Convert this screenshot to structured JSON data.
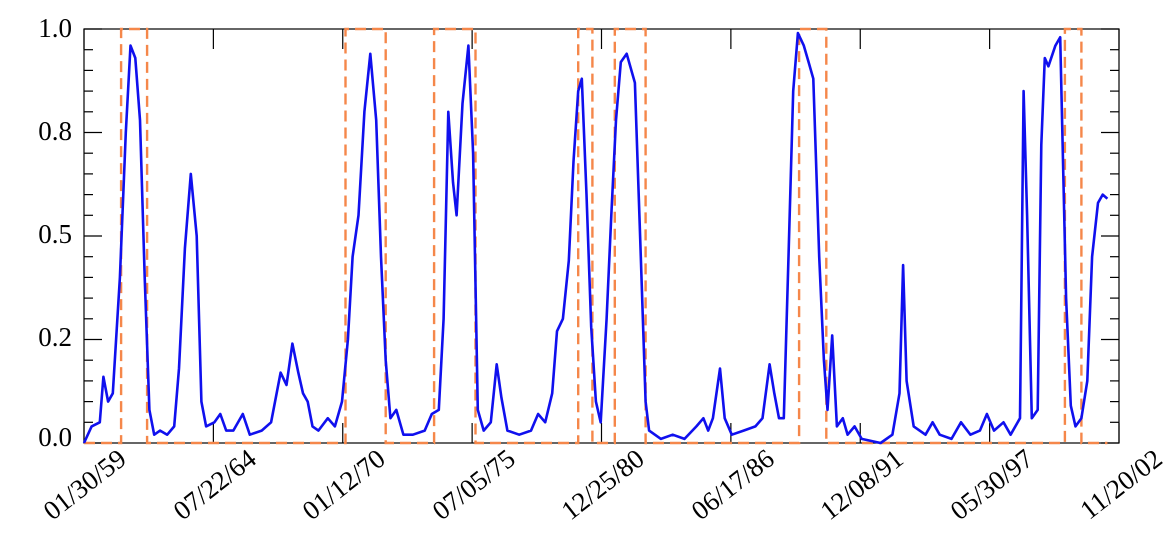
{
  "chart_data": {
    "type": "line",
    "title": "",
    "xlabel": "",
    "ylabel": "",
    "x_tick_labels": [
      "01/30/59",
      "07/22/64",
      "01/12/70",
      "07/05/75",
      "12/25/80",
      "06/17/86",
      "12/08/91",
      "05/30/97",
      "11/20/02"
    ],
    "y_tick_labels": [
      "0.0",
      "0.2",
      "0.5",
      "0.8",
      "1.0"
    ],
    "ylim": [
      0,
      1
    ],
    "grid": false,
    "series": [
      {
        "color": "#1010ee",
        "style": "solid",
        "points": [
          [
            1959.08,
            0.0
          ],
          [
            1959.4,
            0.04
          ],
          [
            1959.75,
            0.05
          ],
          [
            1959.9,
            0.16
          ],
          [
            1960.1,
            0.1
          ],
          [
            1960.3,
            0.12
          ],
          [
            1960.6,
            0.4
          ],
          [
            1960.85,
            0.75
          ],
          [
            1961.05,
            0.96
          ],
          [
            1961.25,
            0.93
          ],
          [
            1961.45,
            0.78
          ],
          [
            1961.65,
            0.4
          ],
          [
            1961.85,
            0.08
          ],
          [
            1962.05,
            0.02
          ],
          [
            1962.3,
            0.03
          ],
          [
            1962.6,
            0.02
          ],
          [
            1962.9,
            0.04
          ],
          [
            1963.1,
            0.18
          ],
          [
            1963.35,
            0.47
          ],
          [
            1963.6,
            0.65
          ],
          [
            1963.85,
            0.5
          ],
          [
            1964.05,
            0.1
          ],
          [
            1964.25,
            0.04
          ],
          [
            1964.6,
            0.05
          ],
          [
            1964.85,
            0.07
          ],
          [
            1965.1,
            0.03
          ],
          [
            1965.4,
            0.03
          ],
          [
            1965.8,
            0.07
          ],
          [
            1966.1,
            0.02
          ],
          [
            1966.6,
            0.03
          ],
          [
            1967.0,
            0.05
          ],
          [
            1967.4,
            0.17
          ],
          [
            1967.65,
            0.14
          ],
          [
            1967.9,
            0.24
          ],
          [
            1968.15,
            0.17
          ],
          [
            1968.35,
            0.12
          ],
          [
            1968.55,
            0.1
          ],
          [
            1968.75,
            0.04
          ],
          [
            1969.0,
            0.03
          ],
          [
            1969.4,
            0.06
          ],
          [
            1969.7,
            0.04
          ],
          [
            1970.0,
            0.1
          ],
          [
            1970.25,
            0.25
          ],
          [
            1970.45,
            0.45
          ],
          [
            1970.7,
            0.55
          ],
          [
            1970.95,
            0.8
          ],
          [
            1971.2,
            0.94
          ],
          [
            1971.45,
            0.78
          ],
          [
            1971.65,
            0.45
          ],
          [
            1971.85,
            0.2
          ],
          [
            1972.05,
            0.06
          ],
          [
            1972.3,
            0.08
          ],
          [
            1972.6,
            0.02
          ],
          [
            1973.0,
            0.02
          ],
          [
            1973.5,
            0.03
          ],
          [
            1973.8,
            0.07
          ],
          [
            1974.1,
            0.08
          ],
          [
            1974.3,
            0.3
          ],
          [
            1974.5,
            0.8
          ],
          [
            1974.7,
            0.63
          ],
          [
            1974.85,
            0.55
          ],
          [
            1975.1,
            0.82
          ],
          [
            1975.35,
            0.96
          ],
          [
            1975.55,
            0.7
          ],
          [
            1975.75,
            0.08
          ],
          [
            1976.0,
            0.03
          ],
          [
            1976.3,
            0.05
          ],
          [
            1976.55,
            0.19
          ],
          [
            1976.75,
            0.11
          ],
          [
            1977.0,
            0.03
          ],
          [
            1977.5,
            0.02
          ],
          [
            1978.0,
            0.03
          ],
          [
            1978.3,
            0.07
          ],
          [
            1978.6,
            0.05
          ],
          [
            1978.9,
            0.12
          ],
          [
            1979.1,
            0.27
          ],
          [
            1979.35,
            0.3
          ],
          [
            1979.6,
            0.44
          ],
          [
            1979.8,
            0.68
          ],
          [
            1980.0,
            0.85
          ],
          [
            1980.15,
            0.88
          ],
          [
            1980.35,
            0.6
          ],
          [
            1980.55,
            0.28
          ],
          [
            1980.75,
            0.1
          ],
          [
            1980.95,
            0.05
          ],
          [
            1981.2,
            0.3
          ],
          [
            1981.4,
            0.55
          ],
          [
            1981.6,
            0.78
          ],
          [
            1981.8,
            0.92
          ],
          [
            1982.05,
            0.94
          ],
          [
            1982.4,
            0.87
          ],
          [
            1982.65,
            0.45
          ],
          [
            1982.85,
            0.1
          ],
          [
            1983.0,
            0.03
          ],
          [
            1983.5,
            0.01
          ],
          [
            1984.0,
            0.02
          ],
          [
            1984.5,
            0.01
          ],
          [
            1985.0,
            0.04
          ],
          [
            1985.3,
            0.06
          ],
          [
            1985.5,
            0.03
          ],
          [
            1985.7,
            0.06
          ],
          [
            1986.0,
            0.18
          ],
          [
            1986.2,
            0.06
          ],
          [
            1986.5,
            0.02
          ],
          [
            1987.0,
            0.03
          ],
          [
            1987.5,
            0.04
          ],
          [
            1987.8,
            0.06
          ],
          [
            1988.1,
            0.19
          ],
          [
            1988.3,
            0.12
          ],
          [
            1988.5,
            0.06
          ],
          [
            1988.7,
            0.06
          ],
          [
            1988.9,
            0.45
          ],
          [
            1989.1,
            0.85
          ],
          [
            1989.3,
            0.99
          ],
          [
            1989.55,
            0.96
          ],
          [
            1989.75,
            0.92
          ],
          [
            1989.95,
            0.88
          ],
          [
            1990.2,
            0.45
          ],
          [
            1990.4,
            0.2
          ],
          [
            1990.55,
            0.08
          ],
          [
            1990.75,
            0.26
          ],
          [
            1990.95,
            0.04
          ],
          [
            1991.2,
            0.06
          ],
          [
            1991.4,
            0.02
          ],
          [
            1991.7,
            0.04
          ],
          [
            1992.0,
            0.01
          ],
          [
            1992.8,
            0.0
          ],
          [
            1993.3,
            0.02
          ],
          [
            1993.6,
            0.12
          ],
          [
            1993.75,
            0.43
          ],
          [
            1993.9,
            0.15
          ],
          [
            1994.2,
            0.04
          ],
          [
            1994.7,
            0.02
          ],
          [
            1995.0,
            0.05
          ],
          [
            1995.3,
            0.02
          ],
          [
            1995.8,
            0.01
          ],
          [
            1996.2,
            0.05
          ],
          [
            1996.6,
            0.02
          ],
          [
            1997.0,
            0.03
          ],
          [
            1997.3,
            0.07
          ],
          [
            1997.6,
            0.03
          ],
          [
            1998.0,
            0.05
          ],
          [
            1998.3,
            0.02
          ],
          [
            1998.7,
            0.06
          ],
          [
            1998.85,
            0.85
          ],
          [
            1999.0,
            0.55
          ],
          [
            1999.2,
            0.06
          ],
          [
            1999.45,
            0.08
          ],
          [
            1999.6,
            0.72
          ],
          [
            1999.75,
            0.93
          ],
          [
            1999.9,
            0.91
          ],
          [
            2000.2,
            0.96
          ],
          [
            2000.4,
            0.98
          ],
          [
            2000.65,
            0.35
          ],
          [
            2000.85,
            0.09
          ],
          [
            2001.05,
            0.04
          ],
          [
            2001.3,
            0.06
          ],
          [
            2001.55,
            0.15
          ],
          [
            2001.75,
            0.45
          ],
          [
            2002.0,
            0.58
          ],
          [
            2002.2,
            0.6
          ],
          [
            2002.4,
            0.59
          ]
        ]
      },
      {
        "color": "#f5874a",
        "style": "dashed",
        "points": [
          [
            1959.08,
            0.0
          ],
          [
            1960.65,
            0.0
          ],
          [
            1960.65,
            1.0
          ],
          [
            1961.75,
            1.0
          ],
          [
            1961.75,
            0.0
          ],
          [
            1970.15,
            0.0
          ],
          [
            1970.15,
            1.0
          ],
          [
            1971.85,
            1.0
          ],
          [
            1971.85,
            0.0
          ],
          [
            1973.9,
            0.0
          ],
          [
            1973.9,
            1.0
          ],
          [
            1975.65,
            1.0
          ],
          [
            1975.65,
            0.0
          ],
          [
            1980.0,
            0.0
          ],
          [
            1980.0,
            1.0
          ],
          [
            1980.6,
            1.0
          ],
          [
            1980.6,
            0.0
          ],
          [
            1981.55,
            0.0
          ],
          [
            1981.55,
            1.0
          ],
          [
            1982.85,
            1.0
          ],
          [
            1982.85,
            0.0
          ],
          [
            1989.35,
            0.0
          ],
          [
            1989.35,
            1.0
          ],
          [
            1990.5,
            1.0
          ],
          [
            1990.5,
            0.0
          ],
          [
            2000.6,
            0.0
          ],
          [
            2000.6,
            1.0
          ],
          [
            2001.3,
            1.0
          ],
          [
            2001.3,
            0.0
          ],
          [
            2002.4,
            0.0
          ]
        ]
      }
    ]
  }
}
